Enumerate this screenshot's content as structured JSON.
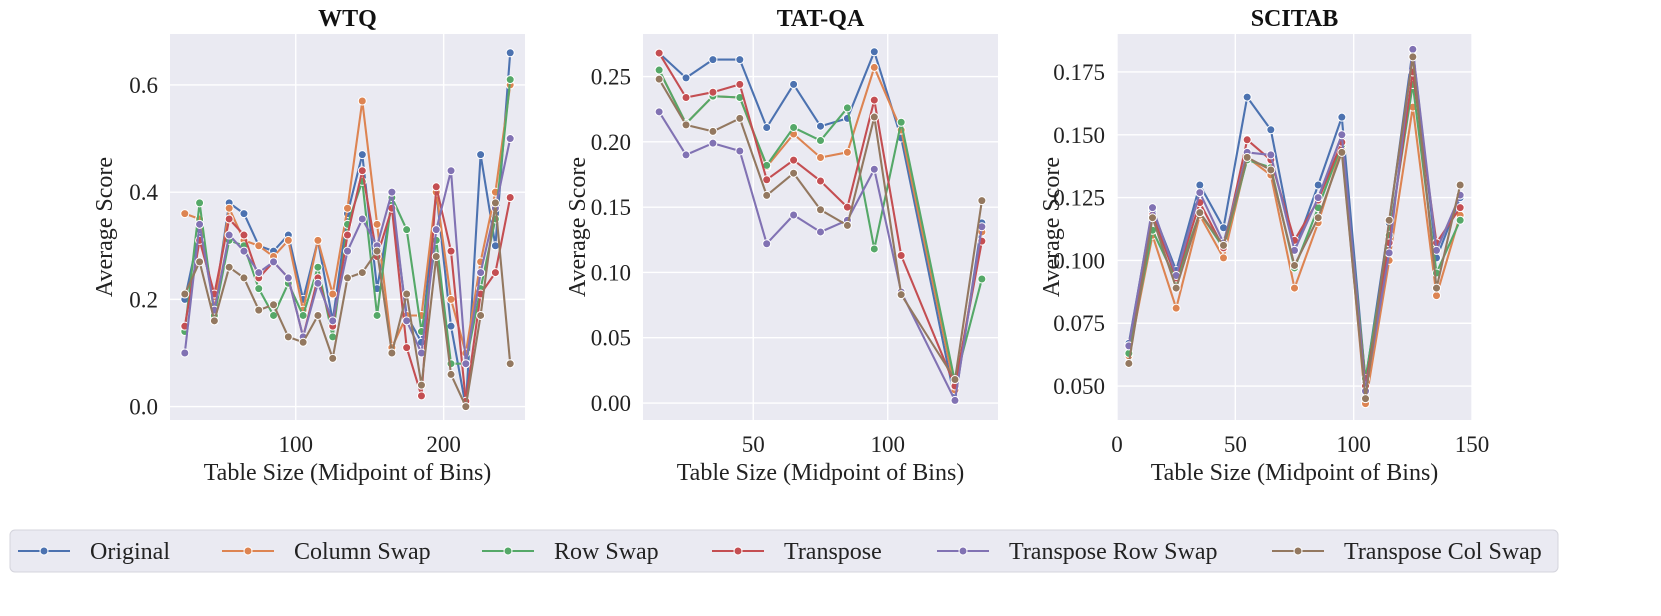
{
  "chart_data": [
    {
      "type": "line",
      "title": "WTQ",
      "xlabel": "Table Size (Midpoint of Bins)",
      "ylabel": "Average Score",
      "xlim": [
        15,
        255
      ],
      "ylim": [
        -0.025,
        0.695
      ],
      "xticks": [
        100,
        200
      ],
      "yticks": [
        0.0,
        0.2,
        0.4,
        0.6
      ],
      "ytick_labels": [
        "0.0",
        "0.2",
        "0.4",
        "0.6"
      ],
      "x": [
        25,
        35,
        45,
        55,
        65,
        75,
        85,
        95,
        105,
        115,
        125,
        135,
        145,
        155,
        165,
        175,
        185,
        195,
        205,
        215,
        225,
        235,
        245
      ],
      "series": [
        {
          "name": "Original",
          "values": [
            0.2,
            0.33,
            0.19,
            0.38,
            0.36,
            0.3,
            0.29,
            0.32,
            0.2,
            0.31,
            0.16,
            0.36,
            0.47,
            0.22,
            0.38,
            0.17,
            0.12,
            0.4,
            0.15,
            0.0,
            0.47,
            0.3,
            0.66
          ]
        },
        {
          "name": "Column Swap",
          "values": [
            0.36,
            0.35,
            0.19,
            0.37,
            0.31,
            0.3,
            0.28,
            0.31,
            0.18,
            0.31,
            0.21,
            0.37,
            0.57,
            0.34,
            0.11,
            0.17,
            0.17,
            0.4,
            0.2,
            0.1,
            0.27,
            0.4,
            0.6
          ]
        },
        {
          "name": "Row Swap",
          "values": [
            0.14,
            0.38,
            0.17,
            0.31,
            0.3,
            0.22,
            0.17,
            0.23,
            0.17,
            0.26,
            0.13,
            0.34,
            0.42,
            0.17,
            0.39,
            0.33,
            0.14,
            0.31,
            0.08,
            0.08,
            0.22,
            0.35,
            0.61
          ]
        },
        {
          "name": "Transpose",
          "values": [
            0.15,
            0.31,
            0.21,
            0.35,
            0.32,
            0.24,
            0.27,
            0.24,
            0.13,
            0.24,
            0.15,
            0.32,
            0.44,
            0.28,
            0.37,
            0.11,
            0.02,
            0.41,
            0.29,
            0.01,
            0.21,
            0.25,
            0.39
          ]
        },
        {
          "name": "Transpose Row Swap",
          "values": [
            0.1,
            0.34,
            0.18,
            0.32,
            0.29,
            0.25,
            0.27,
            0.24,
            0.13,
            0.23,
            0.16,
            0.29,
            0.35,
            0.3,
            0.4,
            0.16,
            0.1,
            0.33,
            0.44,
            0.08,
            0.25,
            0.37,
            0.5
          ]
        },
        {
          "name": "Transpose Col Swap",
          "values": [
            0.21,
            0.27,
            0.16,
            0.26,
            0.24,
            0.18,
            0.19,
            0.13,
            0.12,
            0.17,
            0.09,
            0.24,
            0.25,
            0.29,
            0.1,
            0.21,
            0.04,
            0.28,
            0.06,
            0.0,
            0.17,
            0.38,
            0.08
          ]
        }
      ]
    },
    {
      "type": "line",
      "title": "TAT-QA",
      "xlabel": "Table Size (Midpoint of Bins)",
      "ylabel": "Average Score",
      "xlim": [
        9,
        141
      ],
      "ylim": [
        -0.013,
        0.2826
      ],
      "xticks": [
        50,
        100
      ],
      "yticks": [
        0.0,
        0.05,
        0.1,
        0.15,
        0.2,
        0.25
      ],
      "ytick_labels": [
        "0.00",
        "0.05",
        "0.10",
        "0.15",
        "0.20",
        "0.25"
      ],
      "x": [
        15,
        25,
        35,
        45,
        55,
        65,
        75,
        85,
        95,
        105,
        125,
        135
      ],
      "series": [
        {
          "name": "Original",
          "values": [
            0.268,
            0.249,
            0.263,
            0.263,
            0.211,
            0.244,
            0.212,
            0.218,
            0.269,
            0.203,
            0.002,
            0.138
          ]
        },
        {
          "name": "Column Swap",
          "values": [
            0.255,
            0.214,
            0.235,
            0.234,
            0.181,
            0.206,
            0.188,
            0.192,
            0.257,
            0.209,
            0.01,
            0.131
          ]
        },
        {
          "name": "Row Swap",
          "values": [
            0.255,
            0.214,
            0.235,
            0.234,
            0.182,
            0.211,
            0.201,
            0.226,
            0.118,
            0.215,
            0.016,
            0.095
          ]
        },
        {
          "name": "Transpose",
          "values": [
            0.268,
            0.234,
            0.238,
            0.244,
            0.171,
            0.186,
            0.17,
            0.15,
            0.232,
            0.113,
            0.013,
            0.124
          ]
        },
        {
          "name": "Transpose Row Swap",
          "values": [
            0.223,
            0.19,
            0.199,
            0.193,
            0.122,
            0.144,
            0.131,
            0.14,
            0.179,
            0.085,
            0.002,
            0.135
          ]
        },
        {
          "name": "Transpose Col Swap",
          "values": [
            0.248,
            0.213,
            0.208,
            0.218,
            0.159,
            0.176,
            0.148,
            0.136,
            0.219,
            0.083,
            0.018,
            0.155
          ]
        }
      ]
    },
    {
      "type": "line",
      "title": "SCITAB",
      "xlabel": "Table Size (Midpoint of Bins)",
      "ylabel": "Average Score",
      "xlim": [
        0,
        150
      ],
      "ylim": [
        0.0365,
        0.1901
      ],
      "xticks": [
        0,
        50,
        100,
        150
      ],
      "yticks": [
        0.05,
        0.075,
        0.1,
        0.125,
        0.15,
        0.175
      ],
      "ytick_labels": [
        "0.050",
        "0.075",
        "0.100",
        "0.125",
        "0.150",
        "0.175"
      ],
      "x": [
        5,
        15,
        25,
        35,
        45,
        55,
        65,
        75,
        85,
        95,
        105,
        115,
        125,
        135,
        145
      ],
      "series": [
        {
          "name": "Original",
          "values": [
            0.067,
            0.12,
            0.096,
            0.13,
            0.113,
            0.165,
            0.152,
            0.104,
            0.13,
            0.157,
            0.052,
            0.115,
            0.184,
            0.101,
            0.125
          ]
        },
        {
          "name": "Column Swap",
          "values": [
            0.062,
            0.11,
            0.081,
            0.118,
            0.101,
            0.141,
            0.134,
            0.089,
            0.115,
            0.145,
            0.043,
            0.1,
            0.161,
            0.086,
            0.118
          ]
        },
        {
          "name": "Row Swap",
          "values": [
            0.063,
            0.112,
            0.092,
            0.119,
            0.105,
            0.14,
            0.137,
            0.097,
            0.121,
            0.146,
            0.053,
            0.11,
            0.17,
            0.095,
            0.116
          ]
        },
        {
          "name": "Transpose",
          "values": [
            0.066,
            0.118,
            0.093,
            0.123,
            0.105,
            0.148,
            0.14,
            0.108,
            0.124,
            0.147,
            0.05,
            0.107,
            0.175,
            0.107,
            0.121
          ]
        },
        {
          "name": "Transpose Row Swap",
          "values": [
            0.066,
            0.121,
            0.094,
            0.127,
            0.107,
            0.143,
            0.142,
            0.104,
            0.125,
            0.15,
            0.048,
            0.103,
            0.184,
            0.104,
            0.126
          ]
        },
        {
          "name": "Transpose Col Swap",
          "values": [
            0.059,
            0.117,
            0.089,
            0.119,
            0.106,
            0.141,
            0.136,
            0.098,
            0.117,
            0.143,
            0.045,
            0.116,
            0.181,
            0.089,
            0.13
          ]
        }
      ]
    }
  ],
  "legend": {
    "placement": "bottom",
    "items": [
      {
        "name": "Original",
        "color": "#4c72b0"
      },
      {
        "name": "Column Swap",
        "color": "#dd8452"
      },
      {
        "name": "Row Swap",
        "color": "#55a868"
      },
      {
        "name": "Transpose",
        "color": "#c44e52"
      },
      {
        "name": "Transpose Row Swap",
        "color": "#8172b3"
      },
      {
        "name": "Transpose Col Swap",
        "color": "#937860"
      }
    ]
  }
}
